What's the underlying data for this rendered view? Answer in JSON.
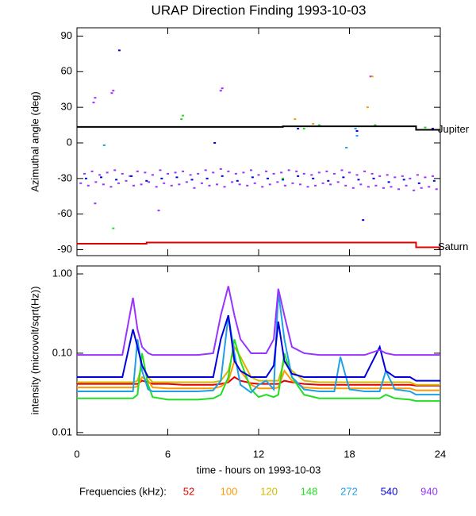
{
  "chart_data": [
    {
      "type": "scatter",
      "title": "URAP Direction Finding  1993-10-03",
      "ylabel": "Azimuthal angle (deg)",
      "xlim": [
        0,
        24
      ],
      "xticks": [
        0,
        6,
        12,
        18,
        24
      ],
      "ylim": [
        -95,
        97
      ],
      "yticks": [
        90,
        60,
        30,
        0,
        -30,
        -60,
        -90
      ],
      "series": [
        {
          "name": "Jupiter",
          "color": "#000000",
          "x": [
            0,
            13.6,
            13.6,
            22.4,
            22.4,
            24
          ],
          "values": [
            13.5,
            13.5,
            14,
            14,
            11,
            11
          ]
        },
        {
          "name": "Saturn",
          "color": "#e00000",
          "x": [
            0,
            4.6,
            4.6,
            22.4,
            22.4,
            24
          ],
          "values": [
            -85,
            -85,
            -84,
            -84,
            -88,
            -88
          ]
        }
      ],
      "points": [
        {
          "color": "#9933ff",
          "x": [
            0.5,
            1,
            1.5,
            2,
            2.5,
            3,
            3.5,
            4,
            4.5,
            5,
            5.5,
            6,
            6.5,
            7,
            7.5,
            8,
            8.5,
            9,
            9.5,
            10,
            10.5,
            11,
            11.5,
            12,
            12.5,
            13,
            13.5,
            14,
            14.5,
            15,
            15.5,
            16,
            16.5,
            17,
            17.5,
            18,
            18.5,
            19,
            19.5,
            20,
            20.5,
            21,
            21.5,
            22,
            22.5,
            23,
            23.5
          ],
          "values": [
            -26,
            -24,
            -27,
            -25,
            -23,
            -26,
            -28,
            -24,
            -25,
            -27,
            -23,
            -26,
            -25,
            -24,
            -27,
            -26,
            -23,
            -25,
            -22,
            -24,
            -26,
            -25,
            -23,
            -27,
            -24,
            -26,
            -25,
            -23,
            -24,
            -26,
            -27,
            -25,
            -24,
            -26,
            -23,
            -25,
            -27,
            -24,
            -26,
            -28,
            -27,
            -29,
            -28,
            -30,
            -27,
            -29,
            -28
          ]
        },
        {
          "color": "#9933ff",
          "x": [
            0.25,
            0.75,
            1.25,
            1.75,
            2.25,
            2.75,
            3.25,
            3.75,
            4.25,
            4.75,
            5.25,
            5.75,
            6.25,
            6.75,
            7.25,
            7.75,
            8.25,
            8.75,
            9.25,
            9.75,
            10.25,
            10.75,
            11.25,
            11.75,
            12.25,
            12.75,
            13.25,
            13.75,
            14.25,
            14.75,
            15.25,
            15.75,
            16.25,
            16.75,
            17.25,
            17.75,
            18.25,
            18.75,
            19.25,
            19.75,
            20.25,
            20.75,
            21.25,
            21.75,
            22.25,
            22.75,
            23.25,
            23.75
          ],
          "values": [
            -34,
            -36,
            -33,
            -35,
            -37,
            -34,
            -32,
            -36,
            -35,
            -33,
            -37,
            -34,
            -36,
            -35,
            -33,
            -38,
            -34,
            -36,
            -35,
            -37,
            -33,
            -35,
            -36,
            -34,
            -37,
            -35,
            -33,
            -36,
            -34,
            -35,
            -37,
            -36,
            -34,
            -35,
            -33,
            -36,
            -38,
            -35,
            -37,
            -36,
            -38,
            -37,
            -39,
            -36,
            -40,
            -38,
            -37,
            -39
          ]
        },
        {
          "color": "#0000dd",
          "x": [
            0.6,
            1.6,
            2.6,
            3.6,
            4.6,
            5.6,
            6.6,
            7.6,
            8.6,
            9.6,
            10.6,
            11.6,
            12.6,
            13.6,
            14.6,
            15.6,
            16.6,
            17.6,
            18.6,
            19.6,
            20.6,
            21.6,
            22.6,
            23.6
          ],
          "values": [
            -30,
            -29,
            -31,
            -28,
            -32,
            -30,
            -29,
            -31,
            -30,
            -28,
            -32,
            -29,
            -30,
            -31,
            -28,
            -30,
            -32,
            -29,
            -31,
            -30,
            -33,
            -31,
            -34,
            -32
          ]
        },
        {
          "color": "#9933ff",
          "x": [
            1.1,
            1.2,
            2.3,
            2.4,
            9.5,
            9.6,
            5.4,
            19.4,
            1.2
          ],
          "values": [
            34,
            38,
            42,
            44,
            44,
            46,
            -57,
            56,
            -51
          ]
        },
        {
          "color": "#0000dd",
          "x": [
            2.8,
            9.1,
            18.9,
            18.5,
            14.6,
            23.5
          ],
          "values": [
            78,
            0,
            -65,
            10,
            12,
            12
          ]
        },
        {
          "color": "#22dd22",
          "x": [
            6.9,
            7.0,
            15,
            19.7,
            2.4,
            23,
            16,
            13.6
          ],
          "values": [
            20,
            23,
            12,
            15,
            -72,
            13,
            15,
            -30
          ]
        },
        {
          "color": "#ff9900",
          "x": [
            19.5,
            19.2,
            14.4,
            15.6
          ],
          "values": [
            56,
            30,
            20,
            16
          ]
        },
        {
          "color": "#1ea0e6",
          "x": [
            18.4,
            18.5,
            1.8,
            17.8
          ],
          "values": [
            12,
            6,
            -2,
            -4
          ]
        }
      ]
    },
    {
      "type": "line",
      "ylabel": "intensity (microvolt/sqrt(Hz))",
      "xlabel": "time - hours on 1993-10-03",
      "log_y": true,
      "xlim": [
        0,
        24
      ],
      "xticks": [
        0,
        6,
        12,
        18,
        24
      ],
      "ylim": [
        0.0093,
        1.26
      ],
      "yticks": [
        {
          "value": 1,
          "label": "1.00"
        },
        {
          "value": 0.1,
          "label": "0.10"
        },
        {
          "value": 0.01,
          "label": "0.01"
        }
      ],
      "legend_title": "Frequencies (kHz):",
      "x": [
        0,
        1,
        2,
        3,
        3.7,
        4,
        4.3,
        4.7,
        5,
        6,
        7,
        8,
        9,
        9.5,
        10,
        10.4,
        10.8,
        11.5,
        12,
        12.5,
        13,
        13.3,
        13.7,
        14.2,
        15,
        16,
        17,
        17.4,
        18,
        19,
        20,
        20.4,
        21,
        22,
        22.4,
        23,
        24
      ],
      "series": [
        {
          "name": "52",
          "color": "#e00000",
          "values": [
            0.041,
            0.041,
            0.041,
            0.041,
            0.041,
            0.041,
            0.045,
            0.043,
            0.041,
            0.041,
            0.04,
            0.04,
            0.04,
            0.041,
            0.043,
            0.05,
            0.045,
            0.042,
            0.041,
            0.041,
            0.041,
            0.041,
            0.045,
            0.043,
            0.041,
            0.04,
            0.04,
            0.04,
            0.04,
            0.04,
            0.04,
            0.04,
            0.04,
            0.04,
            0.039,
            0.039,
            0.039
          ]
        },
        {
          "name": "100",
          "color": "#ff9900",
          "values": [
            0.037,
            0.037,
            0.037,
            0.037,
            0.037,
            0.038,
            0.05,
            0.045,
            0.037,
            0.036,
            0.036,
            0.036,
            0.036,
            0.038,
            0.045,
            0.08,
            0.06,
            0.04,
            0.036,
            0.036,
            0.036,
            0.037,
            0.06,
            0.045,
            0.037,
            0.036,
            0.036,
            0.036,
            0.036,
            0.036,
            0.036,
            0.036,
            0.036,
            0.036,
            0.034,
            0.034,
            0.034
          ]
        },
        {
          "name": "120",
          "color": "#d4b800",
          "values": [
            0.043,
            0.043,
            0.043,
            0.043,
            0.043,
            0.045,
            0.07,
            0.05,
            0.043,
            0.043,
            0.043,
            0.043,
            0.043,
            0.045,
            0.06,
            0.12,
            0.09,
            0.05,
            0.045,
            0.045,
            0.045,
            0.045,
            0.08,
            0.06,
            0.045,
            0.043,
            0.043,
            0.043,
            0.043,
            0.043,
            0.043,
            0.043,
            0.043,
            0.043,
            0.04,
            0.04,
            0.04
          ]
        },
        {
          "name": "148",
          "color": "#22dd22",
          "values": [
            0.027,
            0.027,
            0.027,
            0.027,
            0.027,
            0.03,
            0.1,
            0.04,
            0.028,
            0.026,
            0.026,
            0.026,
            0.027,
            0.03,
            0.05,
            0.15,
            0.08,
            0.035,
            0.028,
            0.03,
            0.028,
            0.03,
            0.1,
            0.05,
            0.03,
            0.027,
            0.027,
            0.027,
            0.027,
            0.027,
            0.027,
            0.03,
            0.027,
            0.026,
            0.025,
            0.025,
            0.025
          ]
        },
        {
          "name": "272",
          "color": "#1ea0e6",
          "values": [
            0.033,
            0.033,
            0.033,
            0.033,
            0.033,
            0.15,
            0.06,
            0.035,
            0.033,
            0.033,
            0.033,
            0.033,
            0.034,
            0.045,
            0.3,
            0.1,
            0.04,
            0.032,
            0.04,
            0.045,
            0.035,
            0.6,
            0.15,
            0.05,
            0.035,
            0.033,
            0.033,
            0.09,
            0.035,
            0.033,
            0.033,
            0.06,
            0.035,
            0.033,
            0.03,
            0.03,
            0.03
          ]
        },
        {
          "name": "540",
          "color": "#0000dd",
          "values": [
            0.05,
            0.05,
            0.05,
            0.05,
            0.2,
            0.12,
            0.07,
            0.05,
            0.05,
            0.05,
            0.05,
            0.05,
            0.05,
            0.15,
            0.3,
            0.08,
            0.06,
            0.05,
            0.05,
            0.05,
            0.07,
            0.25,
            0.08,
            0.055,
            0.05,
            0.05,
            0.05,
            0.05,
            0.05,
            0.05,
            0.12,
            0.06,
            0.05,
            0.05,
            0.045,
            0.045,
            0.045
          ]
        },
        {
          "name": "940",
          "color": "#9933ff",
          "values": [
            0.095,
            0.095,
            0.095,
            0.095,
            0.5,
            0.2,
            0.12,
            0.1,
            0.095,
            0.095,
            0.095,
            0.095,
            0.1,
            0.3,
            0.7,
            0.3,
            0.15,
            0.1,
            0.1,
            0.1,
            0.15,
            0.65,
            0.3,
            0.12,
            0.1,
            0.095,
            0.095,
            0.095,
            0.095,
            0.095,
            0.11,
            0.1,
            0.095,
            0.095,
            0.095,
            0.095,
            0.095
          ]
        }
      ]
    }
  ]
}
